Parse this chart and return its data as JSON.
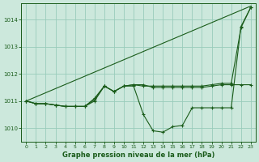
{
  "title": "Graphe pression niveau de la mer (hPa)",
  "background_color": "#cce8dc",
  "grid_color": "#99ccbb",
  "line_color": "#1a5c1a",
  "xlim": [
    -0.5,
    23.5
  ],
  "ylim": [
    1009.5,
    1014.6
  ],
  "yticks": [
    1010,
    1011,
    1012,
    1013,
    1014
  ],
  "xticks": [
    0,
    1,
    2,
    3,
    4,
    5,
    6,
    7,
    8,
    9,
    10,
    11,
    12,
    13,
    14,
    15,
    16,
    17,
    18,
    19,
    20,
    21,
    22,
    23
  ],
  "diagonal": {
    "x": [
      0,
      23
    ],
    "y": [
      1011.0,
      1014.5
    ]
  },
  "series1": {
    "x": [
      0,
      1,
      2,
      3,
      4,
      5,
      6,
      7,
      8,
      9,
      10,
      11,
      12,
      13,
      14,
      15,
      16,
      17,
      18,
      19,
      20,
      21,
      22,
      23
    ],
    "y": [
      1011.0,
      1010.9,
      1010.9,
      1010.85,
      1010.8,
      1010.8,
      1010.8,
      1011.1,
      1011.55,
      1011.35,
      1011.55,
      1011.6,
      1011.55,
      1011.55,
      1011.55,
      1011.55,
      1011.55,
      1011.55,
      1011.55,
      1011.6,
      1011.65,
      1011.65,
      1013.7,
      1014.45
    ]
  },
  "series2": {
    "x": [
      0,
      1,
      2,
      3,
      4,
      5,
      6,
      7,
      8,
      9,
      10,
      11,
      12,
      13,
      14,
      15,
      16,
      17,
      18,
      19,
      20,
      21,
      22,
      23
    ],
    "y": [
      1011.0,
      1010.9,
      1010.9,
      1010.85,
      1010.8,
      1010.8,
      1010.8,
      1011.05,
      1011.55,
      1011.35,
      1011.55,
      1011.6,
      1011.6,
      1011.5,
      1011.5,
      1011.5,
      1011.5,
      1011.5,
      1011.5,
      1011.55,
      1011.6,
      1011.6,
      1011.6,
      1011.6
    ]
  },
  "series3": {
    "x": [
      0,
      1,
      2,
      3,
      4,
      5,
      6,
      7,
      8,
      9,
      10,
      11,
      12,
      13,
      14,
      15,
      16,
      17,
      18,
      19,
      20,
      21,
      22,
      23
    ],
    "y": [
      1011.0,
      1010.9,
      1010.9,
      1010.85,
      1010.8,
      1010.8,
      1010.8,
      1011.0,
      1011.55,
      1011.35,
      1011.55,
      1011.55,
      1010.5,
      1009.9,
      1009.85,
      1010.05,
      1010.1,
      1010.75,
      1010.75,
      1010.75,
      1010.75,
      1010.75,
      1013.75,
      1014.45
    ]
  }
}
